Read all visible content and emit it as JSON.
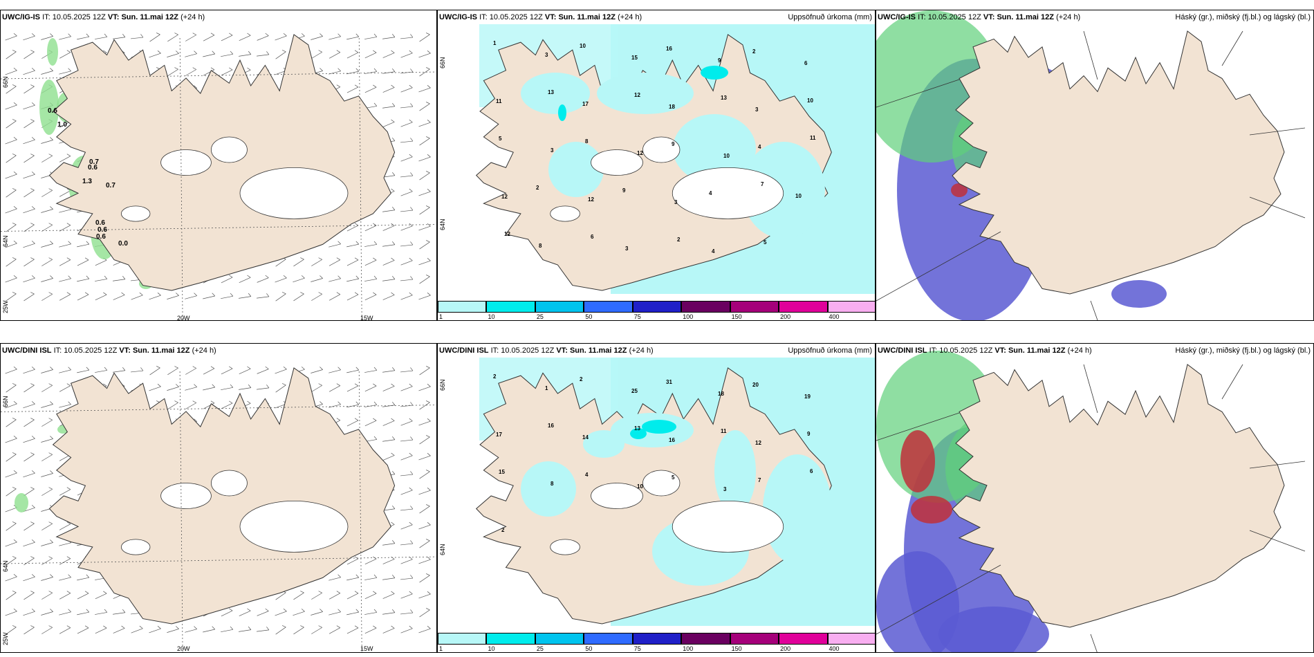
{
  "panels": {
    "p1": {
      "model": "UWC/IG-IS",
      "it_label": "IT:",
      "it_value": "10.05.2025 12Z",
      "vt_label": "VT:",
      "vt_value": "Sun. 11.mai 12Z",
      "lead": "(+24 h)",
      "right_title": "",
      "lat_labels": [
        "66N",
        "64N",
        "25W"
      ],
      "lon_labels": [
        "20W",
        "15W"
      ],
      "values": [
        "0.6",
        "1.0",
        "0.7",
        "0.6",
        "1.3",
        "0.7",
        "0.6",
        "0.6",
        "0.6",
        "0.0"
      ]
    },
    "p2": {
      "model": "UWC/IG-IS",
      "it_label": "IT:",
      "it_value": "10.05.2025 12Z",
      "vt_label": "VT:",
      "vt_value": "Sun. 11.mai 12Z",
      "lead": "(+24 h)",
      "right_title": "Uppsöfnuð úrkoma (mm)",
      "lat_labels": [
        "66N",
        "64N"
      ],
      "values": [
        "1",
        "3",
        "10",
        "15",
        "16",
        "9",
        "2",
        "6",
        "11",
        "13",
        "17",
        "12",
        "18",
        "13",
        "3",
        "10",
        "5",
        "3",
        "8",
        "12",
        "9",
        "10",
        "4",
        "11",
        "12",
        "2",
        "12",
        "9",
        "3",
        "4",
        "7",
        "10",
        "12",
        "8",
        "6",
        "3",
        "2",
        "4",
        "5"
      ]
    },
    "p3": {
      "model": "UWC/IG-IS",
      "it_label": "IT:",
      "it_value": "10.05.2025 12Z",
      "vt_label": "VT:",
      "vt_value": "Sun. 11.mai 12Z",
      "lead": "(+24 h)",
      "right_title": "Háský (gr.), miðský (fj.bl.) og lágský (bl.)"
    },
    "p4": {
      "model": "UWC/DINI ISL",
      "it_label": "IT:",
      "it_value": "10.05.2025 12Z",
      "vt_label": "VT:",
      "vt_value": "Sun. 11.mai 12Z",
      "lead": "(+24 h)",
      "right_title": "",
      "lat_labels": [
        "66N",
        "64N",
        "25W"
      ],
      "lon_labels": [
        "20W",
        "15W"
      ]
    },
    "p5": {
      "model": "UWC/DINI ISL",
      "it_label": "IT:",
      "it_value": "10.05.2025 12Z",
      "vt_label": "VT:",
      "vt_value": "Sun. 11.mai 12Z",
      "lead": "(+24 h)",
      "right_title": "Uppsöfnuð úrkoma (mm)",
      "lat_labels": [
        "66N",
        "64N"
      ],
      "values": [
        "2",
        "1",
        "2",
        "25",
        "31",
        "18",
        "20",
        "19",
        "17",
        "16",
        "14",
        "13",
        "16",
        "11",
        "12",
        "9",
        "15",
        "8",
        "4",
        "10",
        "5",
        "3",
        "7",
        "6",
        "2"
      ]
    },
    "p6": {
      "model": "UWC/DINI ISL",
      "it_label": "IT:",
      "it_value": "10.05.2025 12Z",
      "vt_label": "VT:",
      "vt_value": "Sun. 11.mai 12Z",
      "lead": "(+24 h)",
      "right_title": "Háský (gr.), miðský (fj.bl.) og lágský (bl.)"
    }
  },
  "colorbar": {
    "ticks": [
      "1",
      "10",
      "25",
      "50",
      "75",
      "100",
      "150",
      "200",
      "400"
    ],
    "colors": [
      "#b7f7f7",
      "#00ecec",
      "#00c4ee",
      "#2f6bff",
      "#2020c8",
      "#6a0060",
      "#a5007a",
      "#e0009a",
      "#f8aef0"
    ]
  },
  "colors": {
    "land": "#f2e3d3",
    "precip_light": "#b7f7f7",
    "cloud_high": "#5fd07a",
    "cloud_mid": "#5a5ad2",
    "cloud_low": "#c0303a",
    "wind_green": "#8fe08f"
  }
}
